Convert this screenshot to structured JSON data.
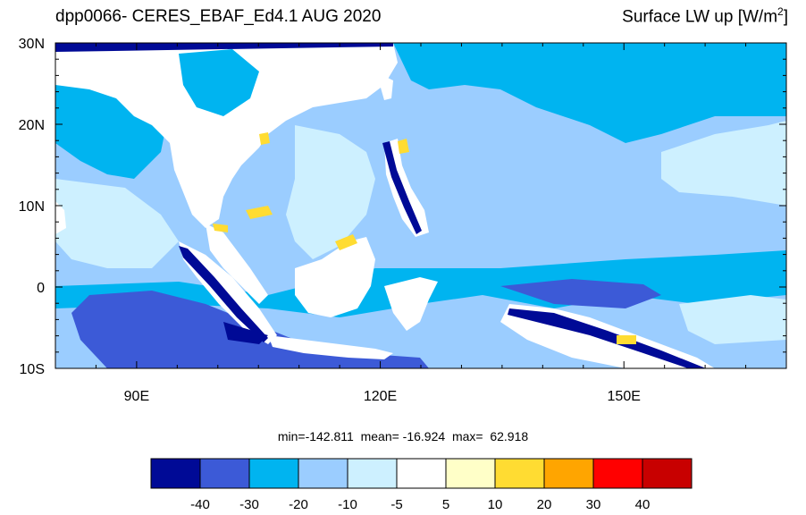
{
  "title": {
    "left": "dpp0066- CERES_EBAF_Ed4.1 AUG 2020",
    "right_main": "Surface LW up [W/m",
    "right_sup": "2",
    "right_close": "]"
  },
  "axes": {
    "lon_ticks": [
      {
        "value": 90,
        "label": "90E"
      },
      {
        "value": 120,
        "label": "120E"
      },
      {
        "value": 150,
        "label": "150E"
      }
    ],
    "lat_ticks": [
      {
        "value": 30,
        "label": "30N"
      },
      {
        "value": 20,
        "label": "20N"
      },
      {
        "value": 10,
        "label": "10N"
      },
      {
        "value": 0,
        "label": "0"
      },
      {
        "value": -10,
        "label": "10S"
      }
    ],
    "lon_range": [
      80,
      170
    ],
    "lat_range": [
      -10,
      30
    ]
  },
  "stats": {
    "min_label": "min=-142.811",
    "mean_label": "mean= -16.924",
    "max_label": "max=  62.918"
  },
  "colorbar": {
    "colors": [
      "#000a96",
      "#3c5ad7",
      "#00b4f0",
      "#9bcdff",
      "#cdf0ff",
      "#ffffff",
      "#ffffc8",
      "#ffdc32",
      "#ffa500",
      "#ff0000",
      "#c80000"
    ],
    "labels": [
      "-40",
      "-30",
      "-20",
      "-10",
      "-5",
      "5",
      "10",
      "20",
      "30",
      "40"
    ]
  },
  "colors": {
    "ocean_base": "#9bcdff",
    "ocean_light": "#cdf0ff",
    "ocean_mid": "#00b4f0",
    "ocean_dark": "#3c5ad7",
    "land_white": "#ffffff",
    "land_dark": "#000a96",
    "warm": "#ffdc32"
  }
}
